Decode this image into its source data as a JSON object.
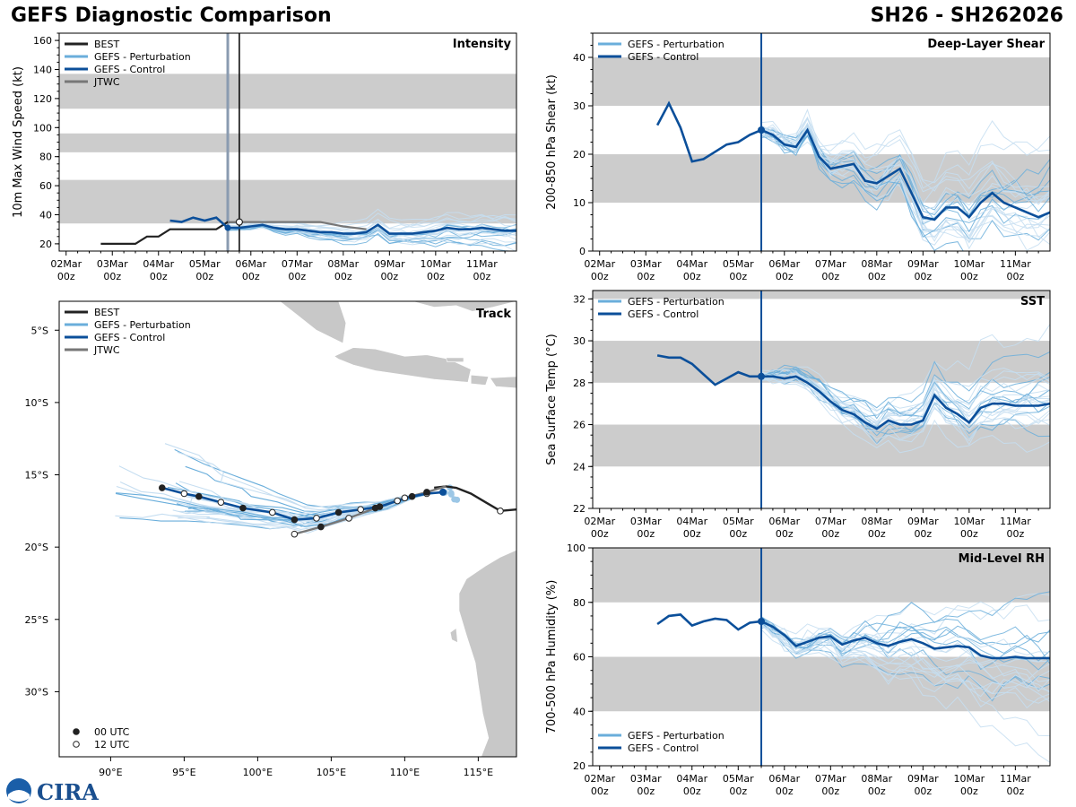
{
  "header": {
    "title": "GEFS Diagnostic Comparison",
    "storm_id": "SH26 - SH262026"
  },
  "logo": {
    "text": "CIRA"
  },
  "colors": {
    "best": "#222222",
    "pert": "#6aaedb",
    "pert_light": "#c6def1",
    "control": "#0b4f9a",
    "jtwc": "#777777",
    "band": "#cccccc"
  },
  "date_labels": [
    "02Mar",
    "03Mar",
    "04Mar",
    "05Mar",
    "06Mar",
    "07Mar",
    "08Mar",
    "09Mar",
    "10Mar",
    "11Mar"
  ],
  "hour_label": "00z",
  "chart_data": [
    {
      "type": "line",
      "id": "intensity",
      "title": "Intensity",
      "ylabel": "10m Max Wind Speed (kt)",
      "ylim": [
        15,
        165
      ],
      "yticks": [
        20,
        40,
        60,
        80,
        100,
        120,
        140,
        160
      ],
      "xlim_days": [
        1.85,
        11.75
      ],
      "bands": [
        [
          34,
          64
        ],
        [
          83,
          96
        ],
        [
          113,
          137
        ]
      ],
      "analysis_day": 5.5,
      "best_vline_day": 5.75,
      "legend": [
        "BEST",
        "GEFS - Perturbation",
        "GEFS - Control",
        "JTWC"
      ],
      "series": [
        {
          "name": "BEST",
          "x": [
            2.75,
            3.0,
            3.25,
            3.5,
            3.75,
            4.0,
            4.25,
            4.5,
            4.75,
            5.0,
            5.25,
            5.5,
            5.75
          ],
          "values": [
            20,
            20,
            20,
            20,
            25,
            25,
            30,
            30,
            30,
            30,
            30,
            35,
            35
          ]
        },
        {
          "name": "GEFS - Control",
          "x": [
            4.25,
            4.5,
            4.75,
            5.0,
            5.25,
            5.5,
            5.75,
            6.0,
            6.25,
            6.5,
            6.75,
            7.0,
            7.25,
            7.5,
            7.75,
            8.0,
            8.25,
            8.5,
            8.75,
            9.0,
            9.25,
            9.5,
            9.75,
            10.0,
            10.25,
            10.5,
            10.75,
            11.0,
            11.25,
            11.5,
            11.75
          ],
          "values": [
            36,
            35,
            38,
            36,
            38,
            31,
            31,
            32,
            33,
            31,
            30,
            30,
            29,
            28,
            28,
            27,
            27,
            28,
            33,
            27,
            27,
            27,
            28,
            29,
            31,
            30,
            30,
            31,
            30,
            29,
            29
          ]
        },
        {
          "name": "JTWC",
          "x": [
            5.5,
            5.75,
            6.0,
            6.5,
            7.0,
            7.5,
            8.0,
            8.5
          ],
          "values": [
            35,
            35,
            35,
            35,
            35,
            35,
            32,
            30
          ]
        }
      ]
    },
    {
      "type": "line",
      "id": "shear",
      "title": "Deep-Layer Shear",
      "ylabel": "200-850 hPa Shear (kt)",
      "ylim": [
        0,
        45
      ],
      "yticks": [
        0,
        10,
        20,
        30,
        40
      ],
      "xlim_days": [
        1.85,
        11.75
      ],
      "bands": [
        [
          10,
          20
        ],
        [
          30,
          40
        ]
      ],
      "analysis_day": 5.5,
      "legend": [
        "GEFS - Perturbation",
        "GEFS - Control"
      ],
      "series": [
        {
          "name": "GEFS - Control",
          "x": [
            3.25,
            3.5,
            3.75,
            4.0,
            4.25,
            4.5,
            4.75,
            5.0,
            5.25,
            5.5,
            5.75,
            6.0,
            6.25,
            6.5,
            6.75,
            7.0,
            7.25,
            7.5,
            7.75,
            8.0,
            8.25,
            8.5,
            8.75,
            9.0,
            9.25,
            9.5,
            9.75,
            10.0,
            10.25,
            10.5,
            10.75,
            11.0,
            11.25,
            11.5,
            11.75
          ],
          "values": [
            26,
            30.5,
            25.5,
            18.5,
            19,
            20.5,
            22,
            22.5,
            24,
            25,
            24,
            22,
            21.5,
            25,
            19.5,
            17,
            17.5,
            18,
            14.5,
            14,
            15.5,
            17,
            12,
            7,
            6.5,
            9,
            9,
            7,
            10,
            12,
            10,
            9,
            8,
            7,
            8
          ]
        }
      ]
    },
    {
      "type": "line",
      "id": "sst",
      "title": "SST",
      "ylabel": "Sea Surface Temp (°C)",
      "ylim": [
        22,
        32.4
      ],
      "yticks": [
        22,
        24,
        26,
        28,
        30,
        32
      ],
      "xlim_days": [
        1.85,
        11.75
      ],
      "bands": [
        [
          24,
          26
        ],
        [
          28,
          30
        ],
        [
          32,
          33
        ]
      ],
      "analysis_day": 5.5,
      "legend": [
        "GEFS - Perturbation",
        "GEFS - Control"
      ],
      "series": [
        {
          "name": "GEFS - Control",
          "x": [
            3.25,
            3.5,
            3.75,
            4.0,
            4.25,
            4.5,
            4.75,
            5.0,
            5.25,
            5.5,
            5.75,
            6.0,
            6.25,
            6.5,
            6.75,
            7.0,
            7.25,
            7.5,
            7.75,
            8.0,
            8.25,
            8.5,
            8.75,
            9.0,
            9.25,
            9.5,
            9.75,
            10.0,
            10.25,
            10.5,
            10.75,
            11.0,
            11.25,
            11.5,
            11.75
          ],
          "values": [
            29.3,
            29.2,
            29.2,
            28.9,
            28.4,
            27.9,
            28.2,
            28.5,
            28.3,
            28.3,
            28.3,
            28.2,
            28.3,
            28.0,
            27.6,
            27.1,
            26.7,
            26.5,
            26.1,
            25.8,
            26.2,
            26.0,
            26.0,
            26.2,
            27.4,
            26.8,
            26.5,
            26.1,
            26.8,
            27.0,
            27.0,
            26.9,
            26.9,
            26.9,
            27.0
          ]
        }
      ]
    },
    {
      "type": "line",
      "id": "rh",
      "title": "Mid-Level RH",
      "ylabel": "700-500 hPa Humidity (%)",
      "ylim": [
        20,
        100
      ],
      "yticks": [
        20,
        40,
        60,
        80,
        100
      ],
      "xlim_days": [
        1.85,
        11.75
      ],
      "bands": [
        [
          40,
          60
        ],
        [
          80,
          100
        ]
      ],
      "analysis_day": 5.5,
      "legend": [
        "GEFS - Perturbation",
        "GEFS - Control"
      ],
      "series": [
        {
          "name": "GEFS - Control",
          "x": [
            3.25,
            3.5,
            3.75,
            4.0,
            4.25,
            4.5,
            4.75,
            5.0,
            5.25,
            5.5,
            5.75,
            6.0,
            6.25,
            6.5,
            6.75,
            7.0,
            7.25,
            7.5,
            7.75,
            8.0,
            8.25,
            8.5,
            8.75,
            9.0,
            9.25,
            9.5,
            9.75,
            10.0,
            10.25,
            10.5,
            10.75,
            11.0,
            11.25,
            11.5,
            11.75
          ],
          "values": [
            72,
            75,
            75.5,
            71.5,
            73,
            74,
            73.5,
            70,
            72.5,
            73,
            71,
            68,
            64,
            65.5,
            67,
            67.5,
            64.5,
            66,
            67,
            65,
            64,
            65.5,
            66.5,
            65,
            63,
            63.5,
            64,
            63.5,
            60.5,
            59.5,
            59.5,
            60,
            59.5,
            59.5,
            59.5
          ]
        }
      ]
    },
    {
      "type": "map",
      "id": "track",
      "title": "Track",
      "lon_range": [
        86.5,
        117.6
      ],
      "lat_range": [
        -34.5,
        -3.0
      ],
      "lon_ticks": [
        "90°E",
        "95°E",
        "100°E",
        "105°E",
        "110°E",
        "115°E"
      ],
      "lon_tick_values": [
        90,
        95,
        100,
        105,
        110,
        115
      ],
      "lat_ticks": [
        "5°S",
        "10°S",
        "15°S",
        "20°S",
        "25°S",
        "30°S"
      ],
      "lat_tick_values": [
        -5,
        -10,
        -15,
        -20,
        -25,
        -30
      ],
      "legend": [
        "BEST",
        "GEFS - Perturbation",
        "GEFS - Control",
        "JTWC"
      ],
      "marker_legend": [
        "00 UTC",
        "12 UTC"
      ],
      "best_track": {
        "lon": [
          112.0,
          112.8,
          113.5,
          114.5,
          115.5,
          116.5,
          117.6
        ],
        "lat": [
          -15.9,
          -15.8,
          -15.9,
          -16.3,
          -16.9,
          -17.5,
          -17.4
        ]
      },
      "control_track": {
        "lon": [
          112.6,
          111.5,
          110.5,
          109.5,
          108.3,
          107.0,
          105.5,
          104.0,
          102.5,
          101.0,
          99.0,
          97.5,
          96.0,
          95.0,
          93.5
        ],
        "lat": [
          -16.2,
          -16.3,
          -16.5,
          -16.8,
          -17.2,
          -17.4,
          -17.6,
          -18.0,
          -18.1,
          -17.6,
          -17.3,
          -16.9,
          -16.5,
          -16.3,
          -15.9
        ]
      },
      "jtwc_track": {
        "lon": [
          112.8,
          111.5,
          110.0,
          108.0,
          106.2,
          104.3,
          102.5
        ],
        "lat": [
          -15.8,
          -16.2,
          -16.6,
          -17.3,
          -18.0,
          -18.6,
          -19.1
        ]
      }
    }
  ]
}
